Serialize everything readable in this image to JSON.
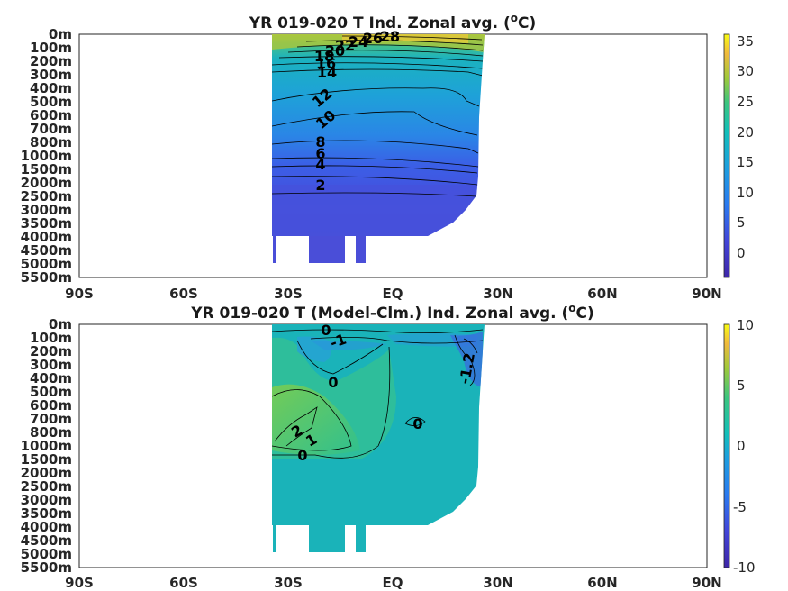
{
  "chart_data": [
    {
      "type": "heatmap",
      "title_prefix": "YR 019-020 T Ind. Zonal avg. (",
      "title_sup": "o",
      "title_suffix": "C)",
      "x_ticks": [
        "90S",
        "60S",
        "30S",
        "EQ",
        "30N",
        "60N",
        "90N"
      ],
      "x_values": [
        -90,
        -60,
        -30,
        0,
        30,
        60,
        90
      ],
      "xlim": [
        -90,
        90
      ],
      "depth_ticks": [
        "0m",
        "100m",
        "200m",
        "300m",
        "400m",
        "500m",
        "600m",
        "700m",
        "800m",
        "1000m",
        "1500m",
        "2000m",
        "2500m",
        "3000m",
        "3500m",
        "4000m",
        "4500m",
        "5000m",
        "5500m"
      ],
      "colorbar": {
        "ticks": [
          "35",
          "30",
          "25",
          "20",
          "15",
          "10",
          "5",
          "0"
        ],
        "values": [
          35,
          30,
          25,
          20,
          15,
          10,
          5,
          0
        ],
        "range": [
          -4,
          36
        ]
      },
      "contour_labels": [
        "28",
        "26",
        "24",
        "22",
        "20",
        "18",
        "16",
        "14",
        "12",
        "10",
        "8",
        "6",
        "4",
        "2"
      ],
      "grid": false
    },
    {
      "type": "heatmap",
      "title_prefix": "YR 019-020 T (Model-Clm.) Ind. Zonal avg. (",
      "title_sup": "o",
      "title_suffix": "C)",
      "x_ticks": [
        "90S",
        "60S",
        "30S",
        "EQ",
        "30N",
        "60N",
        "90N"
      ],
      "x_values": [
        -90,
        -60,
        -30,
        0,
        30,
        60,
        90
      ],
      "xlim": [
        -90,
        90
      ],
      "depth_ticks": [
        "0m",
        "100m",
        "200m",
        "300m",
        "400m",
        "500m",
        "600m",
        "700m",
        "800m",
        "1000m",
        "1500m",
        "2000m",
        "2500m",
        "3000m",
        "3500m",
        "4000m",
        "4500m",
        "5000m",
        "5500m"
      ],
      "colorbar": {
        "ticks": [
          "10",
          "5",
          "0",
          "-5",
          "-10"
        ],
        "values": [
          10,
          5,
          0,
          -5,
          -10
        ],
        "range": [
          -10,
          10
        ]
      },
      "contour_labels": [
        "0",
        "-1",
        "0",
        "0",
        "2",
        "1",
        "0",
        "-1.2"
      ],
      "grid": false
    }
  ],
  "colors": {
    "parula_dark": "#3e26a8",
    "parula_blue": "#2f7fea",
    "parula_teal": "#12beb9",
    "parula_green": "#60c85e",
    "parula_yellow": "#f9fb15",
    "ocean_main": "#1aa8c8",
    "anom_main": "#1ab5b8"
  }
}
